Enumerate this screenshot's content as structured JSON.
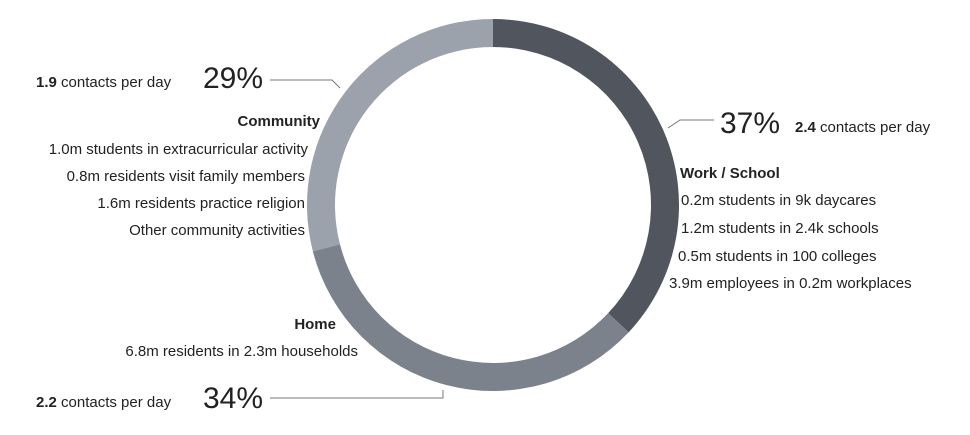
{
  "chart_data": {
    "type": "donut",
    "categories": [
      "Work / School",
      "Home",
      "Community"
    ],
    "values": [
      37,
      34,
      29
    ],
    "value_labels": [
      "37%",
      "34%",
      "29%"
    ],
    "colors": [
      "#51555d",
      "#7b828c",
      "#9ba2ac"
    ],
    "annotations": [
      {
        "contacts": 2.4,
        "unit": "contacts per day",
        "details": [
          "0.2m students in 9k daycares",
          "1.2m students in 2.4k schools",
          "0.5m students in 100 colleges",
          "3.9m employees in 0.2m workplaces"
        ]
      },
      {
        "contacts": 2.2,
        "unit": "contacts per day",
        "details": [
          "6.8m residents in 2.3m households"
        ]
      },
      {
        "contacts": 1.9,
        "unit": "contacts per day",
        "details": [
          "1.0m students in extracurricular activity",
          "0.8m residents visit family members",
          "1.6m residents practice religion",
          "Other community activities"
        ]
      }
    ]
  }
}
